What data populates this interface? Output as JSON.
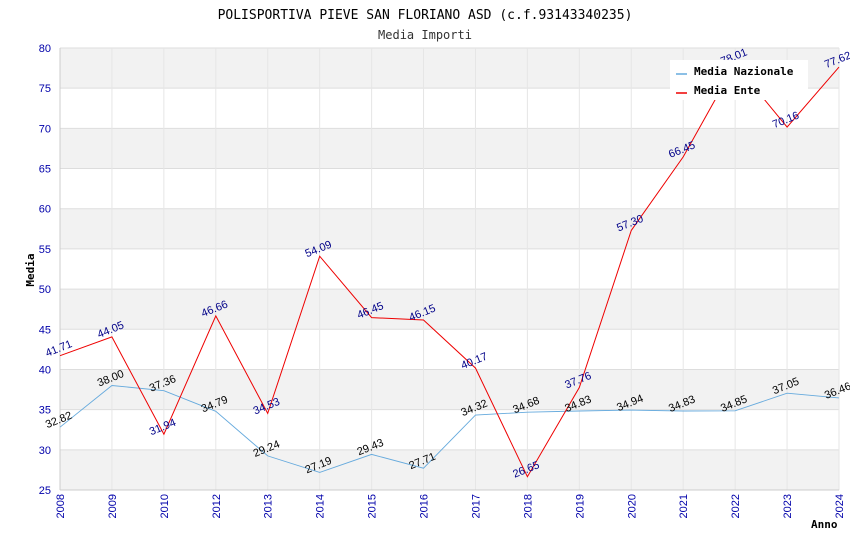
{
  "chart_data": {
    "type": "line",
    "title": "POLISPORTIVA PIEVE SAN FLORIANO ASD (c.f.93143340235)",
    "subtitle": "Media Importi",
    "xlabel": "Anno",
    "ylabel": "Media",
    "ylim": [
      25,
      80
    ],
    "y_ticks": [
      "25",
      "30",
      "35",
      "40",
      "45",
      "50",
      "55",
      "60",
      "65",
      "70",
      "75",
      "80"
    ],
    "categories": [
      "2008",
      "2009",
      "2010",
      "2012",
      "2013",
      "2014",
      "2015",
      "2016",
      "2017",
      "2018",
      "2019",
      "2020",
      "2021",
      "2022",
      "2023",
      "2024"
    ],
    "series": [
      {
        "name": "Media Nazionale",
        "color": "#66aadd",
        "label_color": "#000000",
        "values": [
          32.82,
          38.0,
          37.36,
          34.79,
          29.24,
          27.19,
          29.43,
          27.71,
          34.32,
          34.68,
          34.83,
          34.94,
          34.83,
          34.85,
          37.05,
          36.46
        ],
        "labels": [
          "32.82",
          "38.00",
          "37.36",
          "34.79",
          "29.24",
          "27.19",
          "29.43",
          "27.71",
          "34.32",
          "34.68",
          "34.83",
          "34.94",
          "34.83",
          "34.85",
          "37.05",
          "36.46"
        ]
      },
      {
        "name": "Media Ente",
        "color": "#ee0000",
        "label_color": "#000088",
        "values": [
          41.71,
          44.05,
          31.94,
          46.66,
          34.53,
          54.09,
          46.45,
          46.15,
          40.17,
          26.65,
          37.76,
          57.3,
          66.45,
          78.01,
          70.16,
          77.62
        ],
        "labels": [
          "41.71",
          "44.05",
          "31.94",
          "46.66",
          "34.53",
          "54.09",
          "46.45",
          "46.15",
          "40.17",
          "26.65",
          "37.76",
          "57.30",
          "66.45",
          "78.01",
          "70.16",
          "77.62"
        ]
      }
    ],
    "grid": true,
    "legend_position": "top-right"
  }
}
